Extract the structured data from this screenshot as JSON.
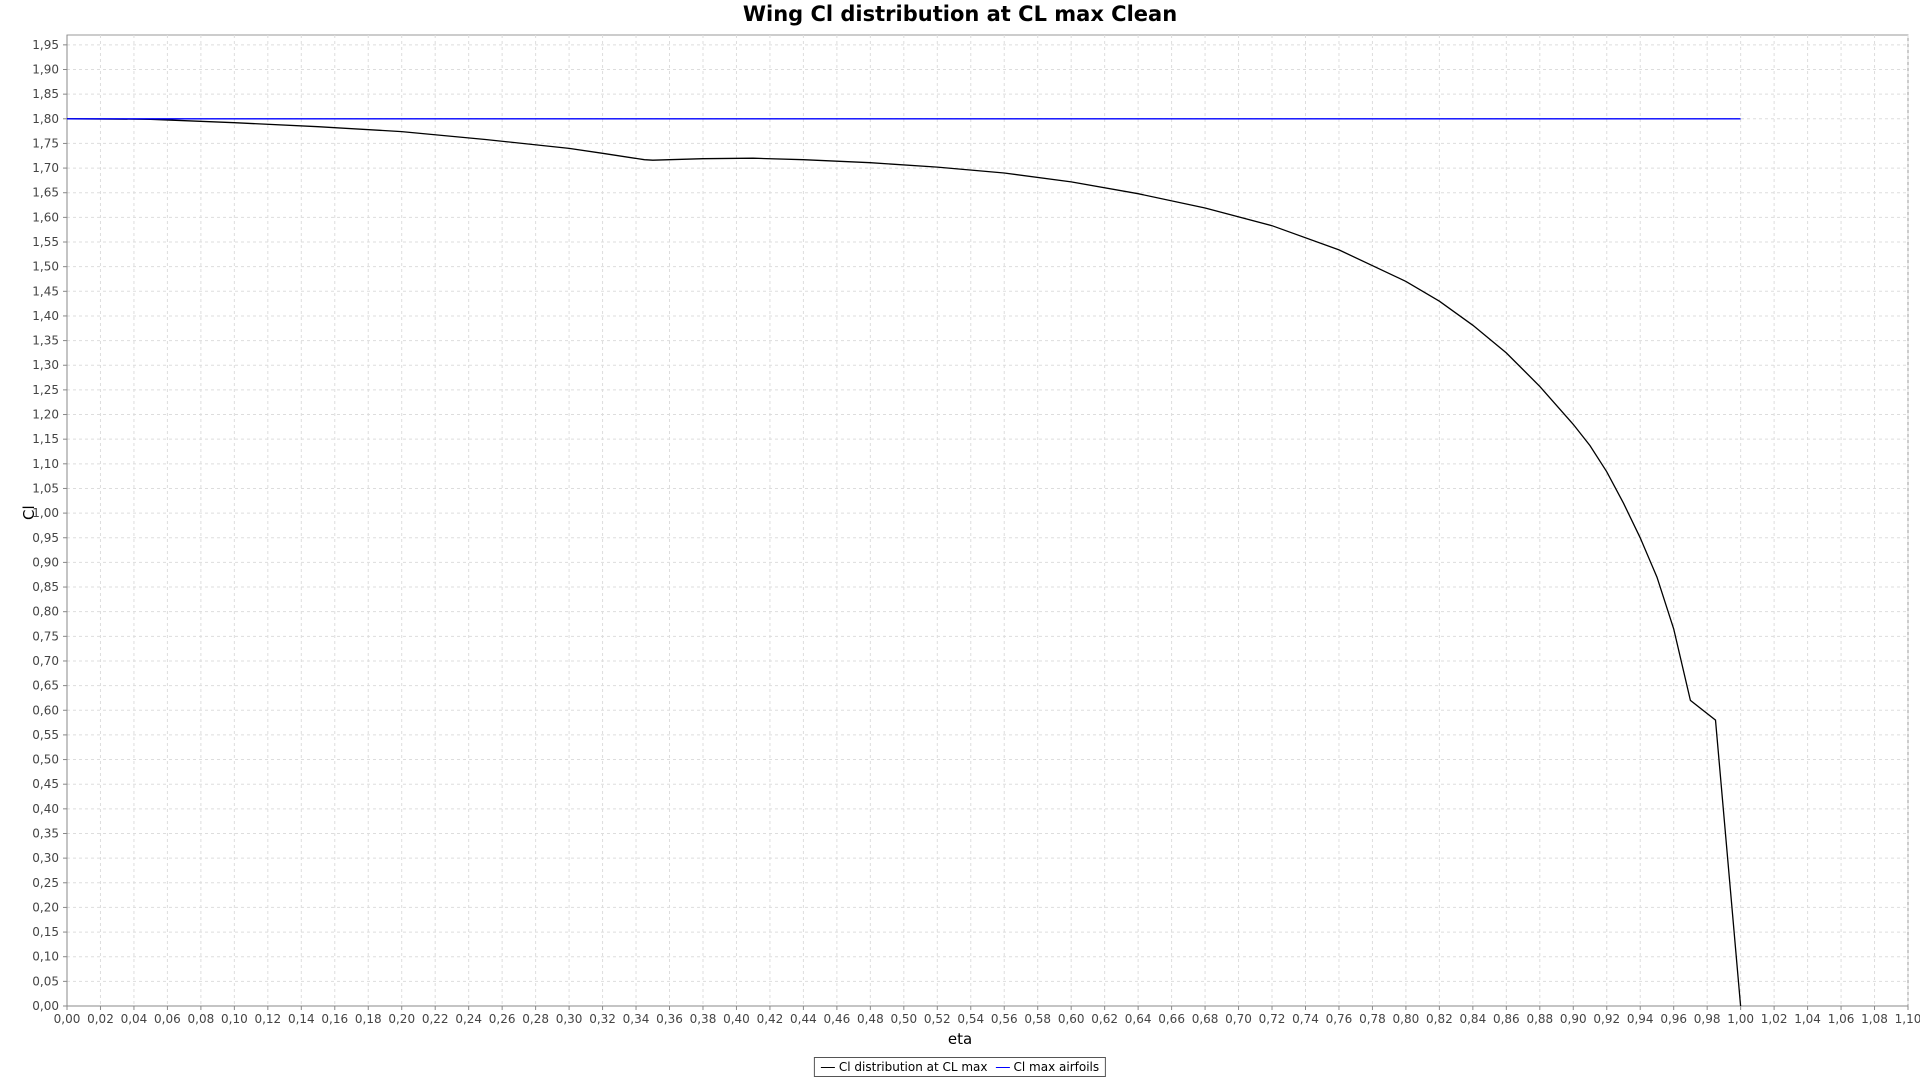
{
  "chart_data": {
    "type": "line",
    "title": "Wing Cl distribution at CL max Clean",
    "xlabel": "eta",
    "ylabel": "Cl",
    "xlim": [
      0.0,
      1.1
    ],
    "ylim": [
      0.0,
      1.97
    ],
    "x_ticks": [
      "0,00",
      "0,02",
      "0,04",
      "0,06",
      "0,08",
      "0,10",
      "0,12",
      "0,14",
      "0,16",
      "0,18",
      "0,20",
      "0,22",
      "0,24",
      "0,26",
      "0,28",
      "0,30",
      "0,32",
      "0,34",
      "0,36",
      "0,38",
      "0,40",
      "0,42",
      "0,44",
      "0,46",
      "0,48",
      "0,50",
      "0,52",
      "0,54",
      "0,56",
      "0,58",
      "0,60",
      "0,62",
      "0,64",
      "0,66",
      "0,68",
      "0,70",
      "0,72",
      "0,74",
      "0,76",
      "0,78",
      "0,80",
      "0,82",
      "0,84",
      "0,86",
      "0,88",
      "0,90",
      "0,92",
      "0,94",
      "0,96",
      "0,98",
      "1,00",
      "1,02",
      "1,04",
      "1,06",
      "1,08",
      "1,10"
    ],
    "y_ticks": [
      "0,00",
      "0,05",
      "0,10",
      "0,15",
      "0,20",
      "0,25",
      "0,30",
      "0,35",
      "0,40",
      "0,45",
      "0,50",
      "0,55",
      "0,60",
      "0,65",
      "0,70",
      "0,75",
      "0,80",
      "0,85",
      "0,90",
      "0,95",
      "1,00",
      "1,05",
      "1,10",
      "1,15",
      "1,20",
      "1,25",
      "1,30",
      "1,35",
      "1,40",
      "1,45",
      "1,50",
      "1,55",
      "1,60",
      "1,65",
      "1,70",
      "1,75",
      "1,80",
      "1,85",
      "1,90",
      "1,95"
    ],
    "grid": true,
    "legend_position": "bottom-center",
    "series": [
      {
        "name": "Cl distribution at CL max",
        "color": "#000000",
        "x": [
          0.0,
          0.05,
          0.1,
          0.15,
          0.2,
          0.25,
          0.3,
          0.32,
          0.345,
          0.35,
          0.38,
          0.41,
          0.44,
          0.48,
          0.52,
          0.56,
          0.6,
          0.64,
          0.68,
          0.72,
          0.76,
          0.8,
          0.82,
          0.84,
          0.86,
          0.88,
          0.9,
          0.91,
          0.92,
          0.93,
          0.94,
          0.95,
          0.96,
          0.97,
          0.985,
          1.0
        ],
        "y": [
          1.8,
          1.799,
          1.792,
          1.784,
          1.774,
          1.758,
          1.74,
          1.73,
          1.717,
          1.716,
          1.719,
          1.72,
          1.717,
          1.711,
          1.702,
          1.69,
          1.672,
          1.648,
          1.619,
          1.583,
          1.534,
          1.47,
          1.43,
          1.381,
          1.325,
          1.257,
          1.18,
          1.137,
          1.084,
          1.02,
          0.95,
          0.87,
          0.765,
          0.62,
          0.58,
          0.0
        ]
      },
      {
        "name": "Cl max airfoils",
        "color": "#0000ff",
        "x": [
          0.0,
          1.0
        ],
        "y": [
          1.8,
          1.8
        ]
      }
    ]
  }
}
